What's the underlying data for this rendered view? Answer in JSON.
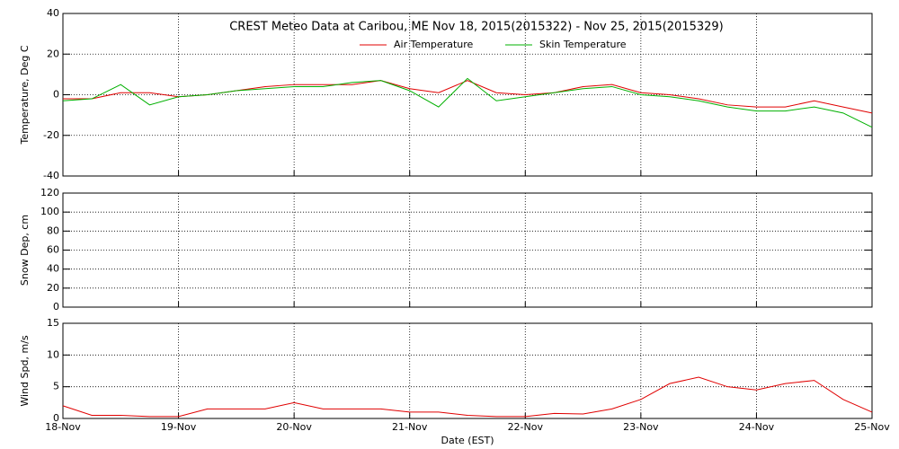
{
  "chart_data": [
    {
      "type": "line",
      "title": "CREST Meteo Data at Caribou, ME   Nov 18, 2015(2015322) - Nov 25, 2015(2015329)",
      "ylabel": "Temperature, Deg C",
      "x": [
        0,
        0.25,
        0.5,
        0.75,
        1,
        1.25,
        1.5,
        1.75,
        2,
        2.25,
        2.5,
        2.75,
        3,
        3.25,
        3.5,
        3.75,
        4,
        4.25,
        4.5,
        4.75,
        5,
        5.25,
        5.5,
        5.75,
        6,
        6.25,
        6.5,
        6.75,
        7
      ],
      "series": [
        {
          "name": "Air Temperature",
          "color": "#e00000",
          "values": [
            -2,
            -2,
            1,
            1,
            -1,
            0,
            2,
            4,
            5,
            5,
            5,
            7,
            3,
            1,
            7,
            1,
            0,
            1,
            4,
            5,
            1,
            0,
            -2,
            -5,
            -6,
            -6,
            -3,
            -6,
            -9
          ]
        },
        {
          "name": "Skin Temperature",
          "color": "#00b000",
          "values": [
            -3,
            -2,
            5,
            -5,
            -1,
            0,
            2,
            3,
            4,
            4,
            6,
            7,
            2,
            -6,
            8,
            -3,
            -1,
            1,
            3,
            4,
            0,
            -1,
            -3,
            -6,
            -8,
            -8,
            -6,
            -9,
            -16
          ]
        }
      ],
      "ylim": [
        -40,
        40
      ],
      "yticks": [
        -40,
        -20,
        0,
        20,
        40
      ],
      "grid": true
    },
    {
      "type": "line",
      "ylabel": "Snow Dep, cm",
      "ylim": [
        0,
        120
      ],
      "yticks": [
        0,
        20,
        40,
        60,
        80,
        100,
        120
      ],
      "grid": true
    },
    {
      "type": "line",
      "ylabel": "Wind Spd, m/s",
      "xlabel": "Date (EST)",
      "x": [
        0,
        0.25,
        0.5,
        0.75,
        1,
        1.25,
        1.5,
        1.75,
        2,
        2.25,
        2.5,
        2.75,
        3,
        3.25,
        3.5,
        3.75,
        4,
        4.25,
        4.5,
        4.75,
        5,
        5.25,
        5.5,
        5.75,
        6,
        6.25,
        6.5,
        6.75,
        7
      ],
      "series": [
        {
          "name": "Wind Speed",
          "color": "#e00000",
          "values": [
            2,
            0.5,
            0.5,
            0.3,
            0.3,
            1.5,
            1.5,
            1.5,
            2.5,
            1.5,
            1.5,
            1.5,
            1,
            1,
            0.5,
            0.3,
            0.3,
            0.8,
            0.7,
            1.5,
            3,
            5.5,
            6.5,
            5,
            4.5,
            5.5,
            6,
            3,
            1
          ]
        }
      ],
      "xlim": [
        0,
        7
      ],
      "xticks": [
        {
          "value": 0,
          "label": "18-Nov"
        },
        {
          "value": 1,
          "label": "19-Nov"
        },
        {
          "value": 2,
          "label": "20-Nov"
        },
        {
          "value": 3,
          "label": "21-Nov"
        },
        {
          "value": 4,
          "label": "22-Nov"
        },
        {
          "value": 5,
          "label": "23-Nov"
        },
        {
          "value": 6,
          "label": "24-Nov"
        },
        {
          "value": 7,
          "label": "25-Nov"
        }
      ],
      "ylim": [
        0,
        15
      ],
      "yticks": [
        0,
        5,
        10,
        15
      ],
      "grid": true
    }
  ]
}
